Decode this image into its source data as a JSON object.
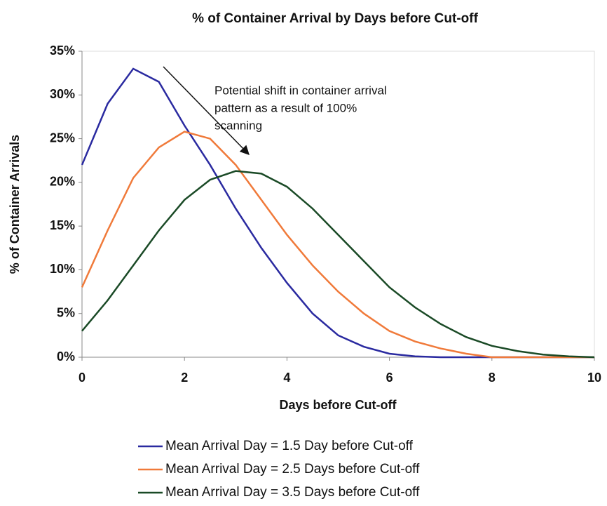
{
  "chart_data": {
    "type": "line",
    "title": "% of Container Arrival by Days before Cut-off",
    "x_label": "Days before Cut-off",
    "y_label": "% of Container Arrivals",
    "annotation": [
      "Potential shift in container arrival",
      "pattern as a result of 100%",
      "scanning"
    ],
    "x": [
      0,
      0.5,
      1,
      1.5,
      2,
      2.5,
      3,
      3.5,
      4,
      4.5,
      5,
      5.5,
      6,
      6.5,
      7,
      7.5,
      8,
      8.5,
      9,
      9.5,
      10
    ],
    "series": [
      {
        "name": "Mean Arrival Day = 1.5 Day before Cut-off",
        "color": "#2a2aa0",
        "values": [
          22,
          29,
          33,
          31.5,
          26.5,
          22,
          17,
          12.5,
          8.5,
          5,
          2.5,
          1.2,
          0.4,
          0.1,
          0,
          0,
          0,
          0,
          0,
          0,
          0
        ]
      },
      {
        "name": "Mean Arrival Day = 2.5 Days before Cut-off",
        "color": "#f07a3a",
        "values": [
          8,
          14.5,
          20.5,
          24,
          25.8,
          25,
          22,
          18,
          14,
          10.5,
          7.5,
          5,
          3,
          1.8,
          1,
          0.4,
          0,
          0,
          0,
          0,
          0
        ]
      },
      {
        "name": "Mean Arrival Day = 3.5 Days before Cut-off",
        "color": "#1a4a26",
        "values": [
          3,
          6.5,
          10.5,
          14.5,
          18,
          20.3,
          21.3,
          21,
          19.5,
          17,
          14,
          11,
          8,
          5.7,
          3.8,
          2.3,
          1.3,
          0.7,
          0.3,
          0.1,
          0
        ]
      }
    ],
    "xlim": [
      0,
      10
    ],
    "xticks": [
      0,
      2,
      4,
      6,
      8,
      10
    ],
    "ylim": [
      0,
      35
    ],
    "yticks": [
      {
        "value": 0,
        "label": "0%"
      },
      {
        "value": 5,
        "label": "5%"
      },
      {
        "value": 10,
        "label": "10%"
      },
      {
        "value": 15,
        "label": "15%"
      },
      {
        "value": 20,
        "label": "20%"
      },
      {
        "value": 25,
        "label": "25%"
      },
      {
        "value": 30,
        "label": "30%"
      },
      {
        "value": 35,
        "label": "35%"
      }
    ],
    "legend": "bottom"
  }
}
